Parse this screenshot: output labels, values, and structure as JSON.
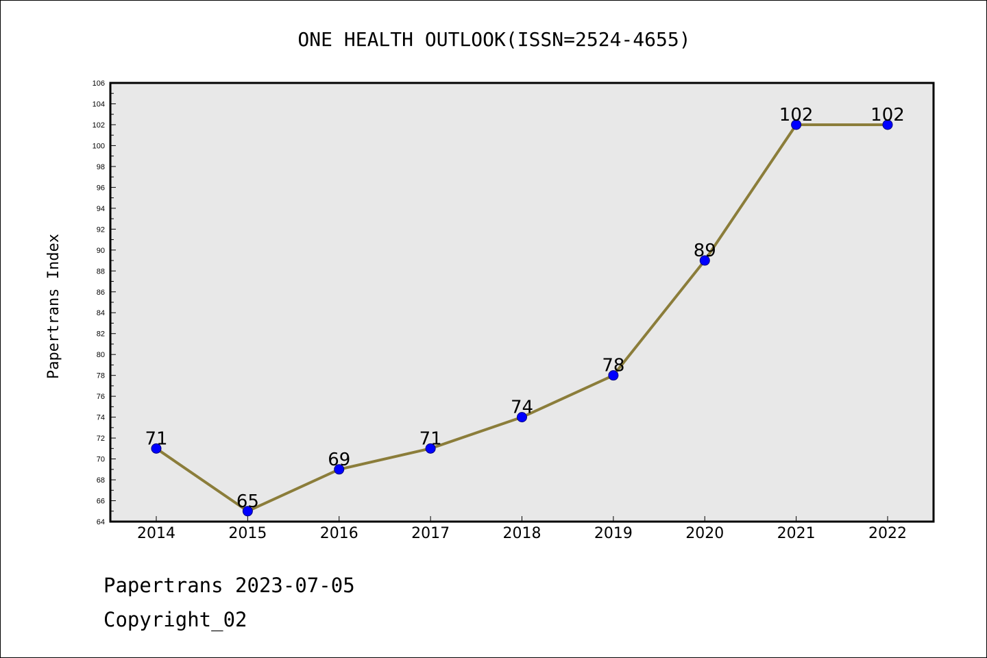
{
  "chart_data": {
    "type": "line",
    "title": "ONE HEALTH OUTLOOK(ISSN=2524-4655)",
    "xlabel": "",
    "ylabel": "Papertrans Index",
    "categories": [
      "2014",
      "2015",
      "2016",
      "2017",
      "2018",
      "2019",
      "2020",
      "2021",
      "2022"
    ],
    "series": [
      {
        "values": [
          71,
          65,
          69,
          71,
          74,
          78,
          89,
          102,
          102
        ],
        "data_labels": [
          "71",
          "65",
          "69",
          "71",
          "74",
          "78",
          "89",
          "102",
          "102"
        ]
      }
    ],
    "ylim": [
      64,
      106
    ],
    "yticks": [
      "64",
      "66",
      "68",
      "70",
      "72",
      "74",
      "76",
      "78",
      "80",
      "82",
      "84",
      "86",
      "88",
      "90",
      "92",
      "94",
      "96",
      "98",
      "100",
      "102",
      "104",
      "106"
    ],
    "grid": false,
    "legend": "none",
    "colors": {
      "line": "#8b7d3a",
      "marker": "#0000ff",
      "marker_edge": "#000080",
      "plot_background": "#e8e8e8"
    }
  },
  "footer": {
    "line1": "Papertrans 2023-07-05",
    "line2": "Copyright_02"
  }
}
